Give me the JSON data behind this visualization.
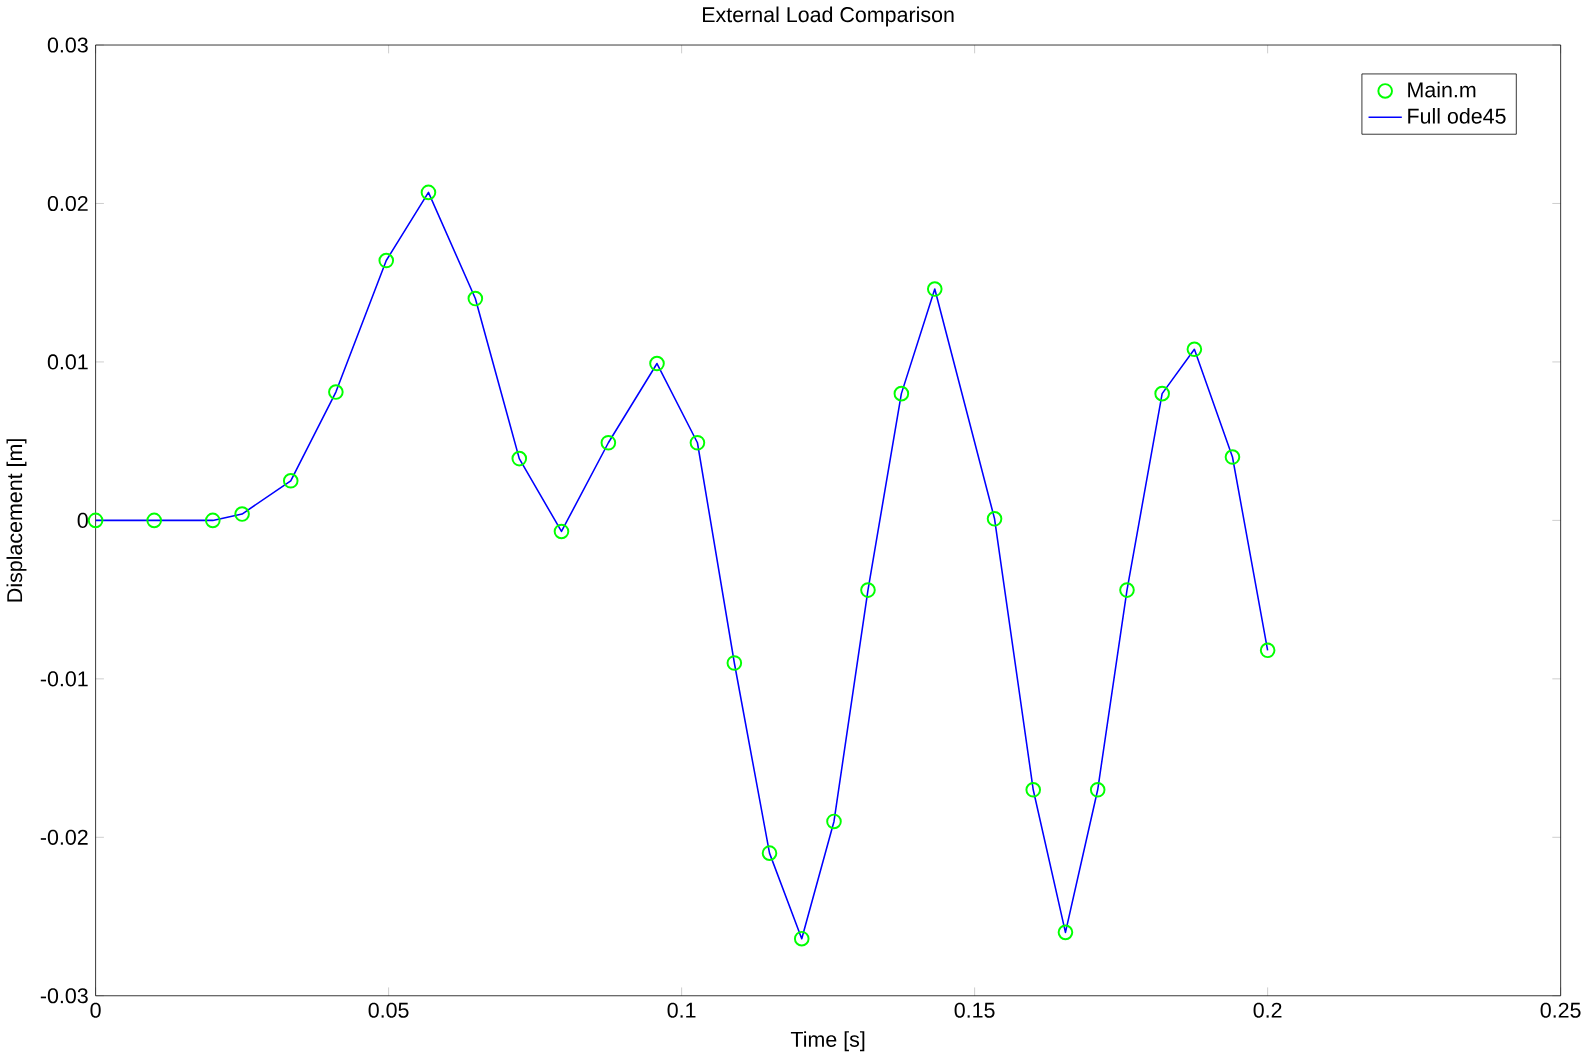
{
  "chart_data": {
    "type": "line",
    "title": "External Load Comparison",
    "xlabel": "Time [s]",
    "ylabel": "Displacement [m]",
    "x": [
      0,
      0.01,
      0.02,
      0.025,
      0.0333,
      0.041,
      0.0496,
      0.0568,
      0.0648,
      0.0723,
      0.0795,
      0.0875,
      0.0958,
      0.1027,
      0.109,
      0.115,
      0.1205,
      0.126,
      0.1318,
      0.1375,
      0.1432,
      0.1534,
      0.16,
      0.1655,
      0.171,
      0.176,
      0.182,
      0.1875,
      0.194,
      0.2
    ],
    "series": [
      {
        "name": "Main.m",
        "type": "scatter",
        "marker": "circle",
        "color": "#00ff00",
        "values": [
          0,
          0,
          0,
          0.0004,
          0.0025,
          0.0081,
          0.0164,
          0.0207,
          0.014,
          0.0039,
          -0.0007,
          0.0049,
          0.0099,
          0.0049,
          -0.009,
          -0.021,
          -0.0264,
          -0.019,
          -0.0044,
          0.008,
          0.0146,
          0.0001,
          -0.017,
          -0.026,
          -0.017,
          -0.0044,
          0.008,
          0.0108,
          0.004,
          -0.0082
        ]
      },
      {
        "name": "Full ode45",
        "color": "#0000ff",
        "values": [
          0,
          0,
          0,
          0.0004,
          0.0025,
          0.0081,
          0.0164,
          0.0207,
          0.014,
          0.0039,
          -0.0007,
          0.0049,
          0.0099,
          0.0049,
          -0.009,
          -0.021,
          -0.0264,
          -0.019,
          -0.0044,
          0.008,
          0.0146,
          0.0001,
          -0.017,
          -0.026,
          -0.017,
          -0.0044,
          0.008,
          0.0108,
          0.004,
          -0.0082
        ]
      }
    ],
    "xlim": [
      0,
      0.25
    ],
    "ylim": [
      -0.03,
      0.03
    ],
    "xticks": [
      0,
      0.05,
      0.1,
      0.15,
      0.2,
      0.25
    ],
    "yticks": [
      -0.03,
      -0.02,
      -0.01,
      0,
      0.01,
      0.02,
      0.03
    ],
    "legend": "top right",
    "grid": false
  }
}
